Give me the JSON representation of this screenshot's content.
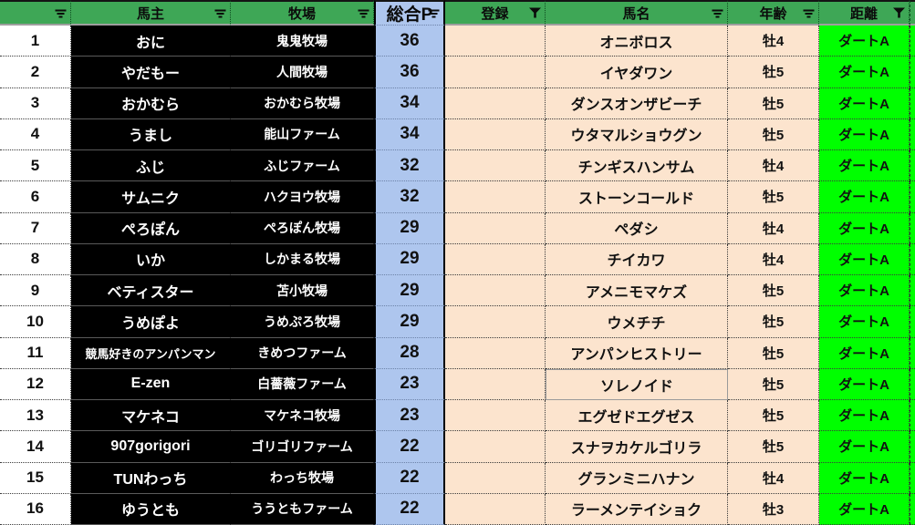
{
  "header": {
    "columns": [
      {
        "key": "num",
        "label": "",
        "filter": "dropdown"
      },
      {
        "key": "owner",
        "label": "馬主",
        "filter": "dropdown"
      },
      {
        "key": "farm",
        "label": "牧場",
        "filter": "dropdown"
      },
      {
        "key": "points",
        "label": "総合P",
        "filter": "dropdown"
      },
      {
        "key": "registration",
        "label": "登録",
        "filter": "funnel"
      },
      {
        "key": "horse",
        "label": "馬名",
        "filter": "dropdown"
      },
      {
        "key": "age",
        "label": "年齢",
        "filter": "dropdown"
      },
      {
        "key": "distance",
        "label": "距離",
        "filter": "funnel"
      }
    ]
  },
  "rows": [
    {
      "num": "1",
      "owner": "おに",
      "farm": "鬼鬼牧場",
      "points": "36",
      "registration": "",
      "horse": "オニボロス",
      "age": "牡4",
      "distance": "ダートA"
    },
    {
      "num": "2",
      "owner": "やだもー",
      "farm": "人間牧場",
      "points": "36",
      "registration": "",
      "horse": "イヤダワン",
      "age": "牡5",
      "distance": "ダートA"
    },
    {
      "num": "3",
      "owner": "おかむら",
      "farm": "おかむら牧場",
      "points": "34",
      "registration": "",
      "horse": "ダンスオンザビーチ",
      "age": "牡5",
      "distance": "ダートA"
    },
    {
      "num": "4",
      "owner": "うまし",
      "farm": "能山ファーム",
      "points": "34",
      "registration": "",
      "horse": "ウタマルショウグン",
      "age": "牡5",
      "distance": "ダートA"
    },
    {
      "num": "5",
      "owner": "ふじ",
      "farm": "ふじファーム",
      "points": "32",
      "registration": "",
      "horse": "チンギスハンサム",
      "age": "牡4",
      "distance": "ダートA"
    },
    {
      "num": "6",
      "owner": "サムニク",
      "farm": "ハクヨウ牧場",
      "points": "32",
      "registration": "",
      "horse": "ストーンコールド",
      "age": "牡5",
      "distance": "ダートA"
    },
    {
      "num": "7",
      "owner": "ぺろぽん",
      "farm": "ぺろぽん牧場",
      "points": "29",
      "registration": "",
      "horse": "ペダシ",
      "age": "牡4",
      "distance": "ダートA"
    },
    {
      "num": "8",
      "owner": "いか",
      "farm": "しかまる牧場",
      "points": "29",
      "registration": "",
      "horse": "チイカワ",
      "age": "牡4",
      "distance": "ダートA"
    },
    {
      "num": "9",
      "owner": "ベティスター",
      "farm": "苫小牧場",
      "points": "29",
      "registration": "",
      "horse": "アメニモマケズ",
      "age": "牡5",
      "distance": "ダートA"
    },
    {
      "num": "10",
      "owner": "うめぽよ",
      "farm": "うめぷろ牧場",
      "points": "29",
      "registration": "",
      "horse": "ウメチチ",
      "age": "牡5",
      "distance": "ダートA"
    },
    {
      "num": "11",
      "owner": "競馬好きのアンパンマン",
      "farm": "きめつファーム",
      "points": "28",
      "registration": "",
      "horse": "アンパンヒストリー",
      "age": "牡5",
      "distance": "ダートA"
    },
    {
      "num": "12",
      "owner": "E-zen",
      "farm": "白薔薇ファーム",
      "points": "23",
      "registration": "",
      "horse": "ソレノイド",
      "age": "牡5",
      "distance": "ダートA"
    },
    {
      "num": "13",
      "owner": "マケネコ",
      "farm": "マケネコ牧場",
      "points": "23",
      "registration": "",
      "horse": "エグゼドエグゼス",
      "age": "牡5",
      "distance": "ダートA"
    },
    {
      "num": "14",
      "owner": "907gorigori",
      "farm": "ゴリゴリファーム",
      "points": "22",
      "registration": "",
      "horse": "スナヲカケルゴリラ",
      "age": "牡5",
      "distance": "ダートA"
    },
    {
      "num": "15",
      "owner": "TUNわっち",
      "farm": "わっち牧場",
      "points": "22",
      "registration": "",
      "horse": "グランミニハナン",
      "age": "牡4",
      "distance": "ダートA"
    },
    {
      "num": "16",
      "owner": "ゆうとも",
      "farm": "ううともファーム",
      "points": "22",
      "registration": "",
      "horse": "ラーメンテイショク",
      "age": "牡3",
      "distance": "ダートA"
    }
  ],
  "colors": {
    "header_green": "#3EA756",
    "distance_green": "#00FF00",
    "points_blue": "#AEC6EE",
    "cell_beige": "#FCE4CE",
    "owner_cell_bg": "#000000"
  }
}
